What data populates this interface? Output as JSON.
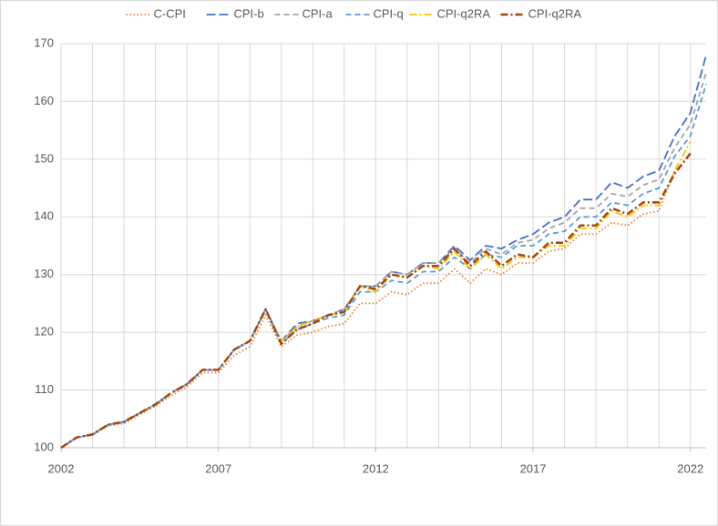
{
  "chart_data": {
    "type": "line",
    "x": [
      2002,
      2002.5,
      2003,
      2003.5,
      2004,
      2004.5,
      2005,
      2005.5,
      2006,
      2006.5,
      2007,
      2007.5,
      2008,
      2008.5,
      2009,
      2009.5,
      2010,
      2010.5,
      2011,
      2011.5,
      2012,
      2012.5,
      2013,
      2013.5,
      2014,
      2014.5,
      2015,
      2015.5,
      2016,
      2016.5,
      2017,
      2017.5,
      2018,
      2018.5,
      2019,
      2019.5,
      2020,
      2020.5,
      2021,
      2021.5,
      2022,
      2022.5
    ],
    "series": [
      {
        "name": "C-CPI",
        "color": "#ed7d31",
        "line_style": "dotted",
        "values": [
          100,
          101.7,
          102.2,
          103.8,
          104.2,
          105.7,
          107.2,
          109,
          110.5,
          113,
          113,
          116,
          117.5,
          123,
          117.5,
          119.5,
          120,
          121,
          121.5,
          125,
          125,
          127,
          126.5,
          128.5,
          128.5,
          131,
          128.5,
          131,
          130,
          132,
          132,
          134,
          134.5,
          137,
          137,
          139,
          138.5,
          140.5,
          141,
          148,
          null,
          null
        ]
      },
      {
        "name": "CPI-b",
        "color": "#4472c4",
        "line_style": "long-dash",
        "values": [
          100,
          101.8,
          102.3,
          104,
          104.5,
          106,
          107.5,
          109.5,
          111,
          113.5,
          113.5,
          117,
          118.5,
          124,
          118.5,
          121.5,
          122,
          123,
          124,
          128,
          128,
          130.5,
          130,
          132,
          132,
          135,
          132.5,
          135,
          134.5,
          136,
          137,
          139,
          140,
          143,
          143,
          146,
          145,
          147,
          148,
          154,
          158,
          168
        ]
      },
      {
        "name": "CPI-a",
        "color": "#a5a5a5",
        "line_style": "dash",
        "values": [
          100,
          101.8,
          102.3,
          104,
          104.5,
          106,
          107.5,
          109.5,
          111,
          113.5,
          113.5,
          117,
          118.5,
          124,
          118.5,
          121,
          122,
          123,
          124,
          128,
          128,
          130.5,
          130,
          132,
          132,
          134.5,
          132,
          134.5,
          133.5,
          135.5,
          136,
          138,
          139,
          141.5,
          141.5,
          144,
          143.5,
          145.5,
          146.5,
          152,
          156,
          165
        ]
      },
      {
        "name": "CPI-q",
        "color": "#5b9bd5",
        "line_style": "dash",
        "values": [
          100,
          101.8,
          102.3,
          104,
          104.5,
          106,
          107.5,
          109.5,
          111,
          113.5,
          113.5,
          117,
          118.5,
          124,
          118,
          120.5,
          121.5,
          122.5,
          123,
          127,
          127,
          129,
          128.5,
          130.5,
          130.5,
          133,
          131,
          133.5,
          133,
          135,
          135,
          137,
          137.5,
          140,
          140,
          142.5,
          142,
          144,
          145,
          150.5,
          154,
          163
        ]
      },
      {
        "name": "CPI-q2RA",
        "color": "#ffc000",
        "line_style": "dash-dot",
        "values": [
          100,
          101.8,
          102.3,
          104,
          104.5,
          106,
          107.5,
          109.5,
          111,
          113.5,
          113.5,
          117,
          118.5,
          124,
          118.5,
          121,
          122,
          123,
          123.5,
          128,
          127,
          130,
          129.5,
          131.5,
          131,
          134,
          131,
          133.5,
          131,
          133,
          133,
          135,
          135,
          138,
          138,
          141,
          140,
          142,
          142,
          148,
          153,
          null
        ]
      },
      {
        "name": "CPI-q2RA",
        "color": "#9e480e",
        "line_style": "dash-dot",
        "values": [
          100,
          101.8,
          102.3,
          104,
          104.5,
          106,
          107.5,
          109.5,
          111,
          113.5,
          113.5,
          117,
          118.5,
          124,
          118,
          120.5,
          121.5,
          123,
          123.5,
          128,
          127.5,
          130,
          129.5,
          131.5,
          131.5,
          134.5,
          131.5,
          134,
          131.5,
          133.5,
          133,
          135.5,
          135.5,
          138.5,
          138.5,
          141.5,
          140.5,
          142.5,
          142.5,
          147.5,
          151,
          null
        ]
      }
    ],
    "xlim": [
      2002,
      2022.5
    ],
    "xticks": [
      2002,
      2007,
      2012,
      2017,
      2022
    ],
    "ylim": [
      100,
      170
    ],
    "yticks": [
      100,
      110,
      120,
      130,
      140,
      150,
      160,
      170
    ],
    "grid": true,
    "legend": "top"
  }
}
